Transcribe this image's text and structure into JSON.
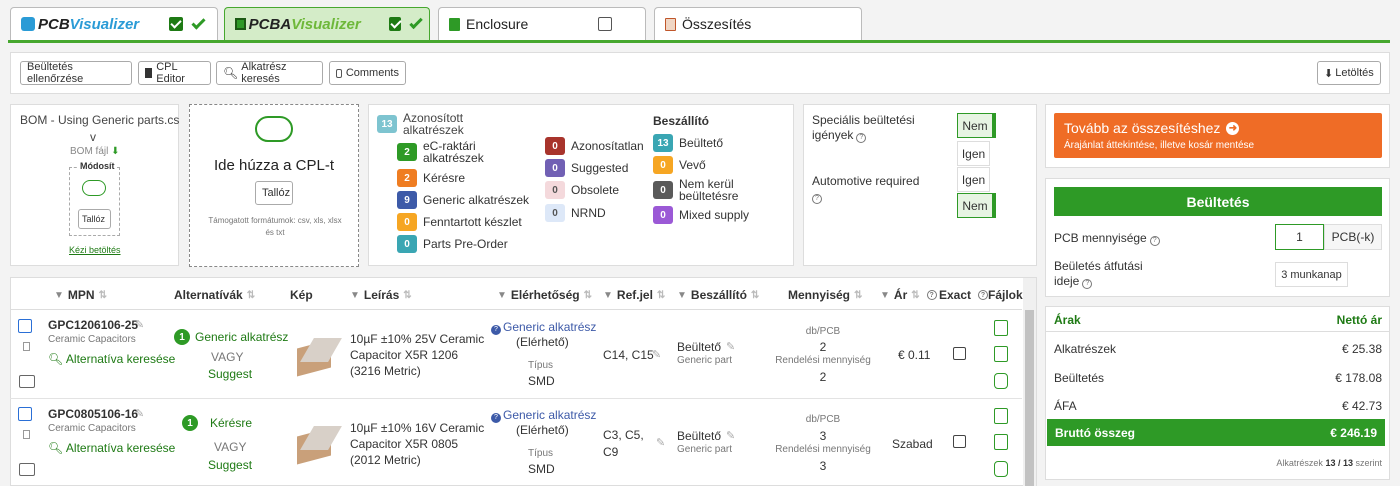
{
  "tabs": [
    {
      "label_a": "PCB",
      "label_b": "Visualizer",
      "checked": true
    },
    {
      "label_a": "PCBA",
      "label_b": "Visualizer",
      "checked": true
    },
    {
      "label": "Enclosure",
      "checked": false
    },
    {
      "label": "Összesítés"
    }
  ],
  "toolbar": {
    "check_placement": "Beültetés ellenőrzése",
    "cpl_editor": "CPL Editor",
    "part_search": "Alkatrész keresés",
    "comments": "Comments",
    "download": "Letöltés"
  },
  "bom": {
    "title": "BOM - Using Generic parts.cs",
    "title2": "v",
    "file_label": "BOM fájl",
    "modified": "Módosít",
    "browse": "Tallóz",
    "manual": "Kézi betöltés"
  },
  "cpl": {
    "drop_text": "Ide húzza a CPL-t",
    "browse": "Tallóz",
    "formats": "Támogatott formátumok: csv, xls, xlsx és txt"
  },
  "stats": {
    "identified": {
      "count": "13",
      "label": "Azonosított alkatrészek"
    },
    "ec_stock": {
      "count": "2",
      "label": "eC-raktári alkatrészek"
    },
    "requested": {
      "count": "2",
      "label": "Kérésre"
    },
    "generic": {
      "count": "9",
      "label": "Generic alkatrészek"
    },
    "reserved": {
      "count": "0",
      "label": "Fenntartott készlet"
    },
    "preorder": {
      "count": "0",
      "label": "Parts Pre-Order"
    },
    "unidentified": {
      "count": "0",
      "label": "Azonosítatlan"
    },
    "suggested": {
      "count": "0",
      "label": "Suggested"
    },
    "obsolete": {
      "count": "0",
      "label": "Obsolete"
    },
    "nrnd": {
      "count": "0",
      "label": "NRND"
    },
    "supplier_title": "Beszállító",
    "placer": {
      "count": "13",
      "label": "Beültető"
    },
    "customer": {
      "count": "0",
      "label": "Vevő"
    },
    "not_placed": {
      "count": "0",
      "label": "Nem kerül beültetésre"
    },
    "mixed": {
      "count": "0",
      "label": "Mixed supply"
    }
  },
  "special": {
    "special_label": "Speciális beültetési igények",
    "automotive_label": "Automotive required",
    "no": "Nem",
    "yes": "Igen"
  },
  "cta": {
    "title": "Tovább az összesítéshez",
    "subtitle": "Árajánlat áttekintése, illetve kosár mentése"
  },
  "placement": {
    "header": "Beültetés",
    "pcb_qty_label": "PCB mennyisége",
    "pcb_qty_value": "1",
    "pcb_unit": "PCB(-k)",
    "lead_time_label": "Beületés átfutási ideje",
    "lead_time_value": "3 munkanap"
  },
  "prices": {
    "header": "Árak",
    "net_header": "Nettó ár",
    "parts_label": "Alkatrészek",
    "parts_value": "€ 25.38",
    "placement_label": "Beültetés",
    "placement_value": "€ 178.08",
    "vat_label": "ÁFA",
    "vat_value": "€ 42.73",
    "gross_label": "Bruttó összeg",
    "gross_value": "€ 246.19",
    "footer_a": "Alkatrészek",
    "footer_b": "13 / 13",
    "footer_c": "szerint"
  },
  "table": {
    "headers": {
      "mpn": "MPN",
      "alternatives": "Alternatívák",
      "image": "Kép",
      "description": "Leírás",
      "availability": "Elérhetőség",
      "refdes": "Ref.jel",
      "supplier": "Beszállító",
      "quantity": "Mennyiség",
      "price": "Ár",
      "exact": "Exact",
      "files": "Fájlok"
    },
    "rows": [
      {
        "mpn": "GPC1206106-25",
        "category": "Ceramic Capacitors",
        "alt_search": "Alternatíva keresése",
        "alt_count": "1",
        "alt_label": "Generic alkatrész",
        "or": "VAGY",
        "suggest": "Suggest",
        "desc1": "10µF ±10% 25V Ceramic",
        "desc2": "Capacitor X5R 1206",
        "desc3": "(3216 Metric)",
        "avail": "Generic alkatrész",
        "avail_status": "(Elérhető)",
        "type_label": "Típus",
        "type": "SMD",
        "ref": "C14, C15",
        "ref2": "",
        "supplier": "Beültető",
        "supplier_sub": "Generic part",
        "per_pcb_label": "db/PCB",
        "per_pcb": "2",
        "order_label": "Rendelési mennyiség",
        "order_qty": "2",
        "price": "€ 0.11"
      },
      {
        "mpn": "GPC0805106-16",
        "category": "Ceramic Capacitors",
        "alt_search": "Alternatíva keresése",
        "alt_count": "1",
        "alt_label": "Kérésre",
        "or": "VAGY",
        "suggest": "Suggest",
        "desc1": "10µF ±10% 16V Ceramic",
        "desc2": "Capacitor X5R 0805",
        "desc3": "(2012 Metric)",
        "avail": "Generic alkatrész",
        "avail_status": "(Elérhető)",
        "type_label": "Típus",
        "type": "SMD",
        "ref": "C3, C5,",
        "ref2": "C9",
        "supplier": "Beültető",
        "supplier_sub": "Generic part",
        "per_pcb_label": "db/PCB",
        "per_pcb": "3",
        "order_label": "Rendelési mennyiség",
        "order_qty": "3",
        "price": "Szabad"
      }
    ]
  }
}
